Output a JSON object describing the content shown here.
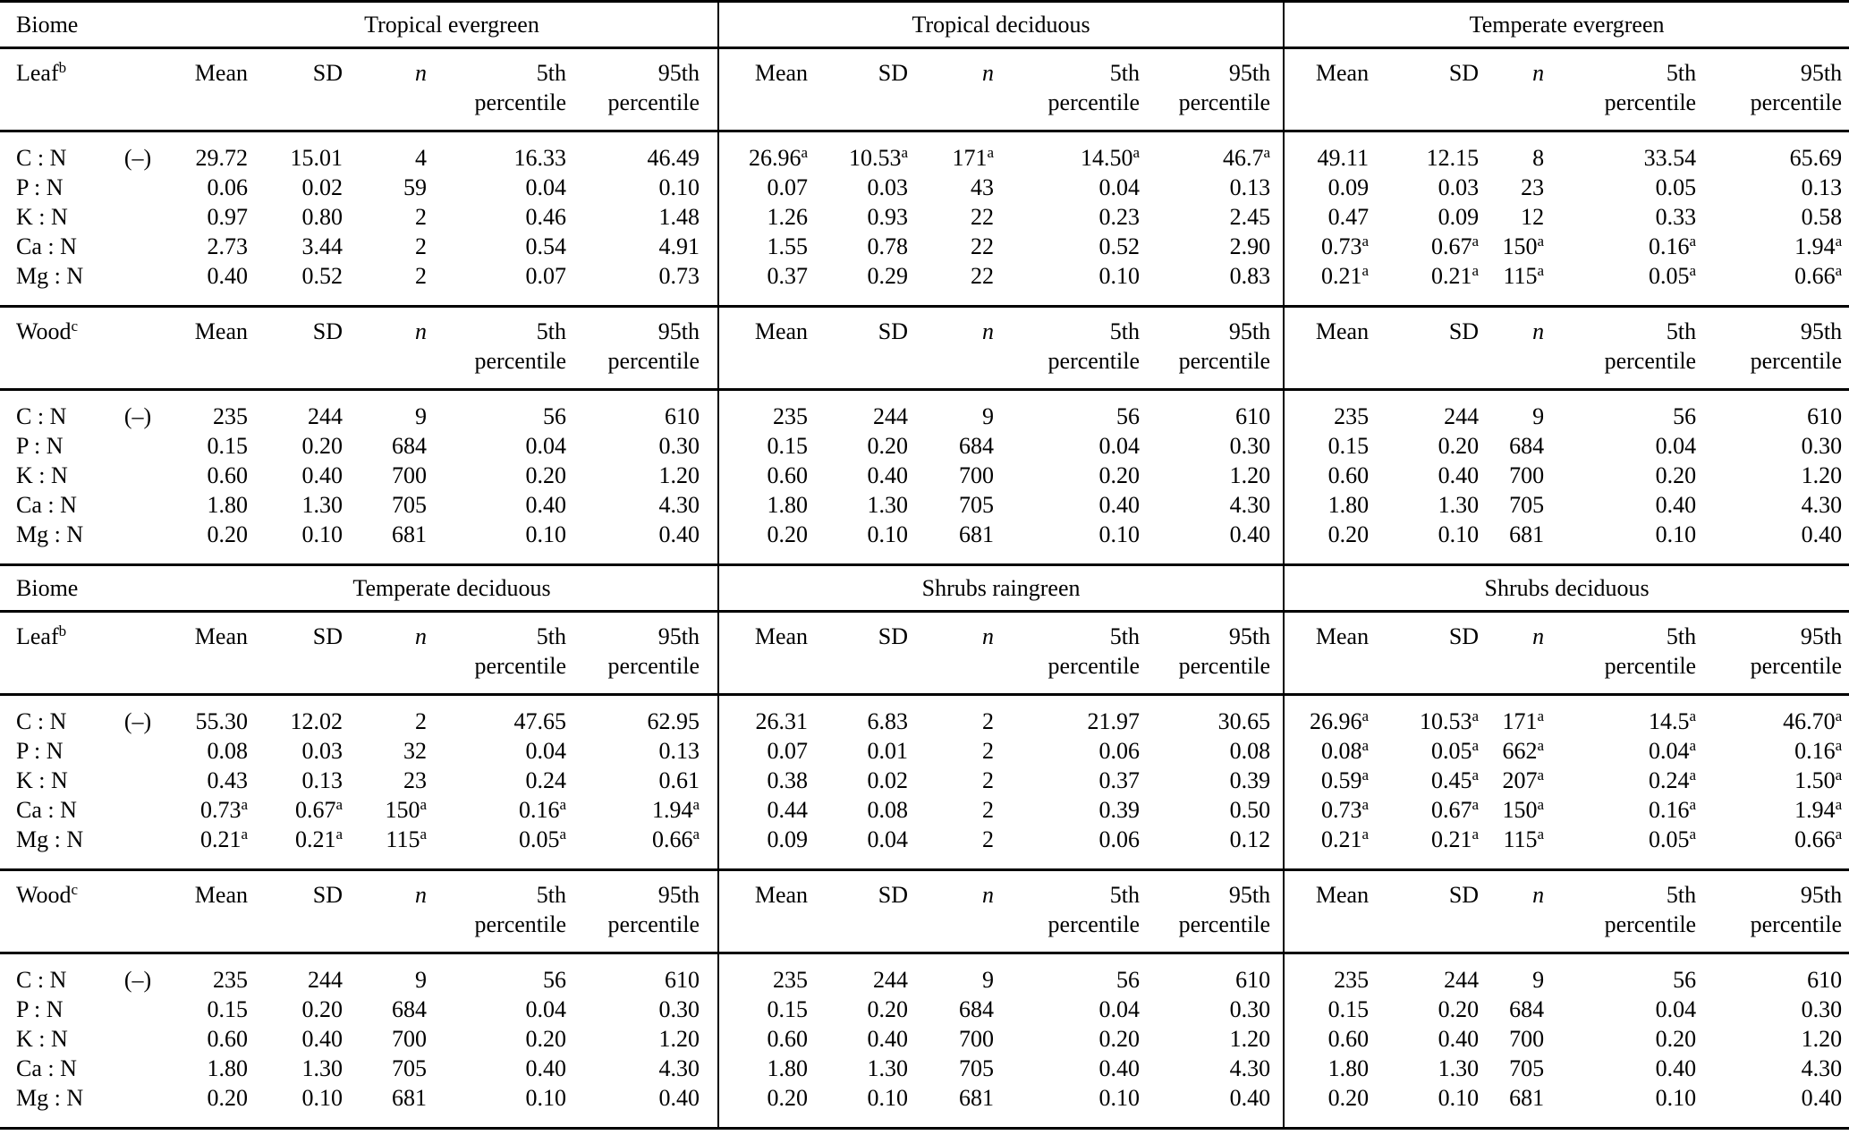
{
  "page": {
    "background": "#ffffff",
    "text_color": "#000000"
  },
  "table": {
    "stub_label": "Biome",
    "unit_label": "(–)",
    "leaf_section": {
      "label": "Leaf",
      "sup": "b"
    },
    "wood_section": {
      "label": "Wood",
      "sup": "c"
    },
    "column_headers": [
      {
        "line1": "Mean",
        "line2": "",
        "italic": false
      },
      {
        "line1": "SD",
        "line2": "",
        "italic": false
      },
      {
        "line1": "n",
        "line2": "",
        "italic": true
      },
      {
        "line1": "5th",
        "line2": "percentile",
        "italic": false
      },
      {
        "line1": "95th",
        "line2": "percentile",
        "italic": false
      }
    ],
    "blocks": [
      {
        "biomes": [
          "Tropical evergreen",
          "Tropical deciduous",
          "Temperate evergreen"
        ],
        "leaf_rows": [
          {
            "label": "C : N",
            "unit": "(–)",
            "values": [
              [
                "29.72",
                "15.01",
                "4",
                "16.33",
                "46.49"
              ],
              [
                "26.96^a",
                "10.53^a",
                "171^a",
                "14.50^a",
                "46.7^a"
              ],
              [
                "49.11",
                "12.15",
                "8",
                "33.54",
                "65.69"
              ]
            ]
          },
          {
            "label": "P : N",
            "unit": "",
            "values": [
              [
                "0.06",
                "0.02",
                "59",
                "0.04",
                "0.10"
              ],
              [
                "0.07",
                "0.03",
                "43",
                "0.04",
                "0.13"
              ],
              [
                "0.09",
                "0.03",
                "23",
                "0.05",
                "0.13"
              ]
            ]
          },
          {
            "label": "K : N",
            "unit": "",
            "values": [
              [
                "0.97",
                "0.80",
                "2",
                "0.46",
                "1.48"
              ],
              [
                "1.26",
                "0.93",
                "22",
                "0.23",
                "2.45"
              ],
              [
                "0.47",
                "0.09",
                "12",
                "0.33",
                "0.58"
              ]
            ]
          },
          {
            "label": "Ca : N",
            "unit": "",
            "values": [
              [
                "2.73",
                "3.44",
                "2",
                "0.54",
                "4.91"
              ],
              [
                "1.55",
                "0.78",
                "22",
                "0.52",
                "2.90"
              ],
              [
                "0.73^a",
                "0.67^a",
                "150^a",
                "0.16^a",
                "1.94^a"
              ]
            ]
          },
          {
            "label": "Mg : N",
            "unit": "",
            "values": [
              [
                "0.40",
                "0.52",
                "2",
                "0.07",
                "0.73"
              ],
              [
                "0.37",
                "0.29",
                "22",
                "0.10",
                "0.83"
              ],
              [
                "0.21^a",
                "0.21^a",
                "115^a",
                "0.05^a",
                "0.66^a"
              ]
            ]
          }
        ],
        "wood_rows": [
          {
            "label": "C : N",
            "unit": "(–)",
            "values": [
              [
                "235",
                "244",
                "9",
                "56",
                "610"
              ],
              [
                "235",
                "244",
                "9",
                "56",
                "610"
              ],
              [
                "235",
                "244",
                "9",
                "56",
                "610"
              ]
            ]
          },
          {
            "label": "P : N",
            "unit": "",
            "values": [
              [
                "0.15",
                "0.20",
                "684",
                "0.04",
                "0.30"
              ],
              [
                "0.15",
                "0.20",
                "684",
                "0.04",
                "0.30"
              ],
              [
                "0.15",
                "0.20",
                "684",
                "0.04",
                "0.30"
              ]
            ]
          },
          {
            "label": "K : N",
            "unit": "",
            "values": [
              [
                "0.60",
                "0.40",
                "700",
                "0.20",
                "1.20"
              ],
              [
                "0.60",
                "0.40",
                "700",
                "0.20",
                "1.20"
              ],
              [
                "0.60",
                "0.40",
                "700",
                "0.20",
                "1.20"
              ]
            ]
          },
          {
            "label": "Ca : N",
            "unit": "",
            "values": [
              [
                "1.80",
                "1.30",
                "705",
                "0.40",
                "4.30"
              ],
              [
                "1.80",
                "1.30",
                "705",
                "0.40",
                "4.30"
              ],
              [
                "1.80",
                "1.30",
                "705",
                "0.40",
                "4.30"
              ]
            ]
          },
          {
            "label": "Mg : N",
            "unit": "",
            "values": [
              [
                "0.20",
                "0.10",
                "681",
                "0.10",
                "0.40"
              ],
              [
                "0.20",
                "0.10",
                "681",
                "0.10",
                "0.40"
              ],
              [
                "0.20",
                "0.10",
                "681",
                "0.10",
                "0.40"
              ]
            ]
          }
        ]
      },
      {
        "biomes": [
          "Temperate deciduous",
          "Shrubs raingreen",
          "Shrubs deciduous"
        ],
        "leaf_rows": [
          {
            "label": "C : N",
            "unit": "(–)",
            "values": [
              [
                "55.30",
                "12.02",
                "2",
                "47.65",
                "62.95"
              ],
              [
                "26.31",
                "6.83",
                "2",
                "21.97",
                "30.65"
              ],
              [
                "26.96^a",
                "10.53^a",
                "171^a",
                "14.5^a",
                "46.70^a"
              ]
            ]
          },
          {
            "label": "P : N",
            "unit": "",
            "values": [
              [
                "0.08",
                "0.03",
                "32",
                "0.04",
                "0.13"
              ],
              [
                "0.07",
                "0.01",
                "2",
                "0.06",
                "0.08"
              ],
              [
                "0.08^a",
                "0.05^a",
                "662^a",
                "0.04^a",
                "0.16^a"
              ]
            ]
          },
          {
            "label": "K : N",
            "unit": "",
            "values": [
              [
                "0.43",
                "0.13",
                "23",
                "0.24",
                "0.61"
              ],
              [
                "0.38",
                "0.02",
                "2",
                "0.37",
                "0.39"
              ],
              [
                "0.59^a",
                "0.45^a",
                "207^a",
                "0.24^a",
                "1.50^a"
              ]
            ]
          },
          {
            "label": "Ca : N",
            "unit": "",
            "values": [
              [
                "0.73^a",
                "0.67^a",
                "150^a",
                "0.16^a",
                "1.94^a"
              ],
              [
                "0.44",
                "0.08",
                "2",
                "0.39",
                "0.50"
              ],
              [
                "0.73^a",
                "0.67^a",
                "150^a",
                "0.16^a",
                "1.94^a"
              ]
            ]
          },
          {
            "label": "Mg : N",
            "unit": "",
            "values": [
              [
                "0.21^a",
                "0.21^a",
                "115^a",
                "0.05^a",
                "0.66^a"
              ],
              [
                "0.09",
                "0.04",
                "2",
                "0.06",
                "0.12"
              ],
              [
                "0.21^a",
                "0.21^a",
                "115^a",
                "0.05^a",
                "0.66^a"
              ]
            ]
          }
        ],
        "wood_rows": [
          {
            "label": "C : N",
            "unit": "(–)",
            "values": [
              [
                "235",
                "244",
                "9",
                "56",
                "610"
              ],
              [
                "235",
                "244",
                "9",
                "56",
                "610"
              ],
              [
                "235",
                "244",
                "9",
                "56",
                "610"
              ]
            ]
          },
          {
            "label": "P : N",
            "unit": "",
            "values": [
              [
                "0.15",
                "0.20",
                "684",
                "0.04",
                "0.30"
              ],
              [
                "0.15",
                "0.20",
                "684",
                "0.04",
                "0.30"
              ],
              [
                "0.15",
                "0.20",
                "684",
                "0.04",
                "0.30"
              ]
            ]
          },
          {
            "label": "K : N",
            "unit": "",
            "values": [
              [
                "0.60",
                "0.40",
                "700",
                "0.20",
                "1.20"
              ],
              [
                "0.60",
                "0.40",
                "700",
                "0.20",
                "1.20"
              ],
              [
                "0.60",
                "0.40",
                "700",
                "0.20",
                "1.20"
              ]
            ]
          },
          {
            "label": "Ca : N",
            "unit": "",
            "values": [
              [
                "1.80",
                "1.30",
                "705",
                "0.40",
                "4.30"
              ],
              [
                "1.80",
                "1.30",
                "705",
                "0.40",
                "4.30"
              ],
              [
                "1.80",
                "1.30",
                "705",
                "0.40",
                "4.30"
              ]
            ]
          },
          {
            "label": "Mg : N",
            "unit": "",
            "values": [
              [
                "0.20",
                "0.10",
                "681",
                "0.10",
                "0.40"
              ],
              [
                "0.20",
                "0.10",
                "681",
                "0.10",
                "0.40"
              ],
              [
                "0.20",
                "0.10",
                "681",
                "0.10",
                "0.40"
              ]
            ]
          }
        ]
      }
    ]
  }
}
